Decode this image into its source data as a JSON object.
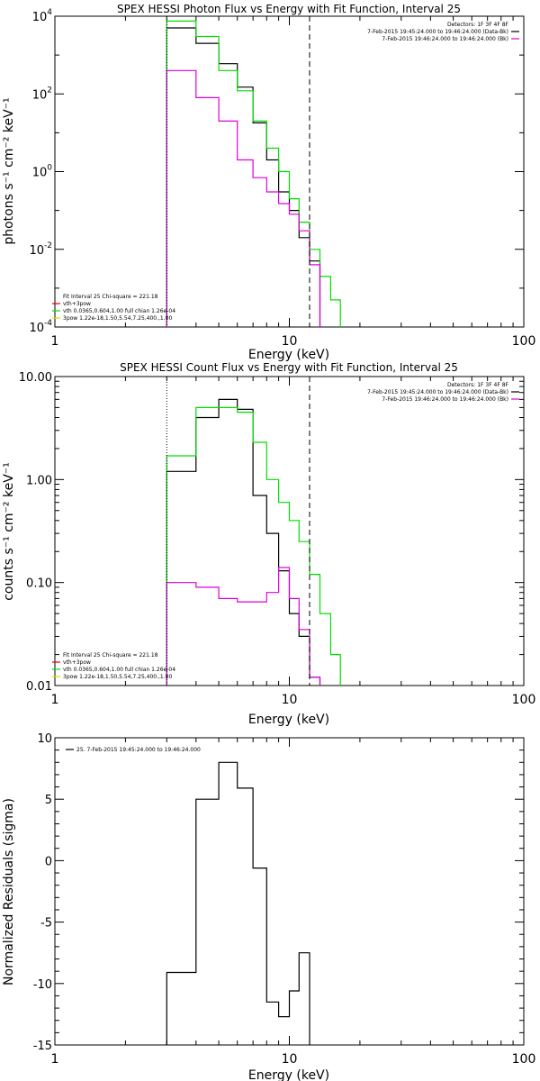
{
  "colors": {
    "data": "#000000",
    "model": "#00dd00",
    "bk": "#dd00dd",
    "pow": "#dddd00",
    "thick": "#dd0000"
  },
  "chart_data": [
    {
      "type": "line",
      "title": "SPEX HESSI Photon Flux vs Energy with Fit Function, Interval 25",
      "xlabel": "Energy (keV)",
      "ylabel": "photons s⁻¹ cm⁻² keV⁻¹",
      "xscale": "log",
      "yscale": "log",
      "xlim": [
        1,
        100
      ],
      "ylim": [
        0.0001,
        10000
      ],
      "xticks": [
        "1",
        "10",
        "100"
      ],
      "yticks": [
        {
          "v": 0.0001,
          "base": "10",
          "exp": "-4"
        },
        {
          "v": 0.01,
          "base": "10",
          "exp": "-2"
        },
        {
          "v": 1,
          "base": "10",
          "exp": "0"
        },
        {
          "v": 100,
          "base": "10",
          "exp": "2"
        },
        {
          "v": 10000,
          "base": "10",
          "exp": "4"
        }
      ],
      "vlines": [
        {
          "x": 3.0,
          "style": "dotted"
        },
        {
          "x": 12.2,
          "style": "dashed"
        }
      ],
      "legend_tr": {
        "lines": [
          {
            "text": "Detectors: 1F 3F 4F 8F",
            "color": null
          },
          {
            "text": "7-Feb-2015 19:45:24.000 to 19:46:24.000 (Data-Bk)",
            "color": "data"
          },
          {
            "text": "7-Feb-2015 19:46:24.000 to 19:46:24.000 (Bk)",
            "color": "bk"
          }
        ]
      },
      "legend_bl": {
        "lines": [
          {
            "text": "Fit Interval 25   Chi-square = 221.18",
            "color": null
          },
          {
            "text": "vth+3pow",
            "color": "thick"
          },
          {
            "text": "vth 0.0365,0.604,1.00  full chian 1.26e-04",
            "color": "model"
          },
          {
            "text": "3pow 1.22e-18,1.50,5.54,7.25,400.,1.00",
            "color": "pow"
          }
        ]
      },
      "edges": [
        3,
        4,
        5,
        6,
        7,
        8,
        9,
        10,
        11,
        12.2,
        13.5,
        15,
        16.5
      ],
      "series": [
        {
          "color": "data",
          "values": [
            5000,
            2000,
            600,
            150,
            18,
            2.0,
            0.3,
            0.1,
            0.02,
            0.005
          ]
        },
        {
          "color": "model",
          "values": [
            7500,
            3000,
            400,
            120,
            20,
            4.0,
            1.0,
            0.2,
            0.05,
            0.01,
            0.002,
            0.0005
          ]
        },
        {
          "color": "bk",
          "values": [
            400,
            80,
            20,
            2,
            0.7,
            0.3,
            0.15,
            0.08,
            0.03,
            0.004
          ]
        }
      ]
    },
    {
      "type": "line",
      "title": "SPEX HESSI Count Flux vs Energy with Fit Function, Interval 25",
      "xlabel": "Energy (keV)",
      "ylabel": "counts s⁻¹ cm⁻² keV⁻¹",
      "xscale": "log",
      "yscale": "log",
      "xlim": [
        1,
        100
      ],
      "ylim": [
        0.01,
        10
      ],
      "xticks": [
        "1",
        "10",
        "100"
      ],
      "yticks": [
        {
          "v": 0.01,
          "base": "0.01",
          "exp": ""
        },
        {
          "v": 0.1,
          "base": "0.10",
          "exp": ""
        },
        {
          "v": 1,
          "base": "1.00",
          "exp": ""
        },
        {
          "v": 10,
          "base": "10.00",
          "exp": ""
        }
      ],
      "vlines": [
        {
          "x": 3.0,
          "style": "dotted"
        },
        {
          "x": 12.2,
          "style": "dashed"
        }
      ],
      "legend_tr": {
        "lines": [
          {
            "text": "Detectors: 1F 3F 4F 8F",
            "color": null
          },
          {
            "text": "7-Feb-2015 19:45:24.000 to 19:46:24.000 (Data-Bk)",
            "color": "data"
          },
          {
            "text": "7-Feb-2015 19:46:24.000 to 19:46:24.000 (Bk)",
            "color": "bk"
          }
        ]
      },
      "legend_bl": {
        "lines": [
          {
            "text": "Fit Interval 25   Chi-square = 221.18",
            "color": null
          },
          {
            "text": "vth+3pow",
            "color": "thick"
          },
          {
            "text": "vth 0.0365,0.604,1.00  full chian 1.26e-04",
            "color": "model"
          },
          {
            "text": "3pow 1.22e-18,1.50,5.54,7.25,400.,1.00",
            "color": "pow"
          }
        ]
      },
      "edges": [
        3,
        4,
        5,
        6,
        7,
        8,
        9,
        10,
        11,
        12.2,
        13.5,
        15,
        16.5
      ],
      "series": [
        {
          "color": "data",
          "values": [
            1.2,
            4.0,
            6.0,
            4.8,
            0.7,
            0.3,
            0.13,
            0.05,
            0.03,
            0.012
          ]
        },
        {
          "color": "model",
          "values": [
            1.7,
            5.0,
            5.0,
            4.5,
            2.3,
            1.0,
            0.6,
            0.4,
            0.25,
            0.12,
            0.05,
            0.02
          ]
        },
        {
          "color": "bk",
          "values": [
            0.1,
            0.09,
            0.07,
            0.065,
            0.065,
            0.08,
            0.14,
            0.07,
            0.035,
            0.012
          ]
        }
      ]
    },
    {
      "type": "line",
      "title": "",
      "xlabel": "Energy (keV)",
      "ylabel": "Normalized Residuals (sigma)",
      "xscale": "log",
      "yscale": "linear",
      "xlim": [
        1,
        100
      ],
      "ylim": [
        -15,
        10
      ],
      "xticks": [
        "1",
        "10",
        "100"
      ],
      "yticks": [
        {
          "v": -15,
          "base": "-15",
          "exp": ""
        },
        {
          "v": -10,
          "base": "-10",
          "exp": ""
        },
        {
          "v": -5,
          "base": "-5",
          "exp": ""
        },
        {
          "v": 0,
          "base": "0",
          "exp": ""
        },
        {
          "v": 5,
          "base": "5",
          "exp": ""
        },
        {
          "v": 10,
          "base": "10",
          "exp": ""
        }
      ],
      "vlines": [],
      "legend_tl": {
        "lines": [
          {
            "text": "25.  7-Feb-2015 19:45:24.000 to 19:46:24.000",
            "color": "data"
          }
        ]
      },
      "edges": [
        3,
        4,
        5,
        6,
        7,
        8,
        9,
        10,
        11,
        12.2
      ],
      "series": [
        {
          "color": "data",
          "values": [
            -9.1,
            5.0,
            8.0,
            5.9,
            -0.6,
            -11.5,
            -12.7,
            -10.6,
            -7.5
          ]
        }
      ]
    }
  ]
}
